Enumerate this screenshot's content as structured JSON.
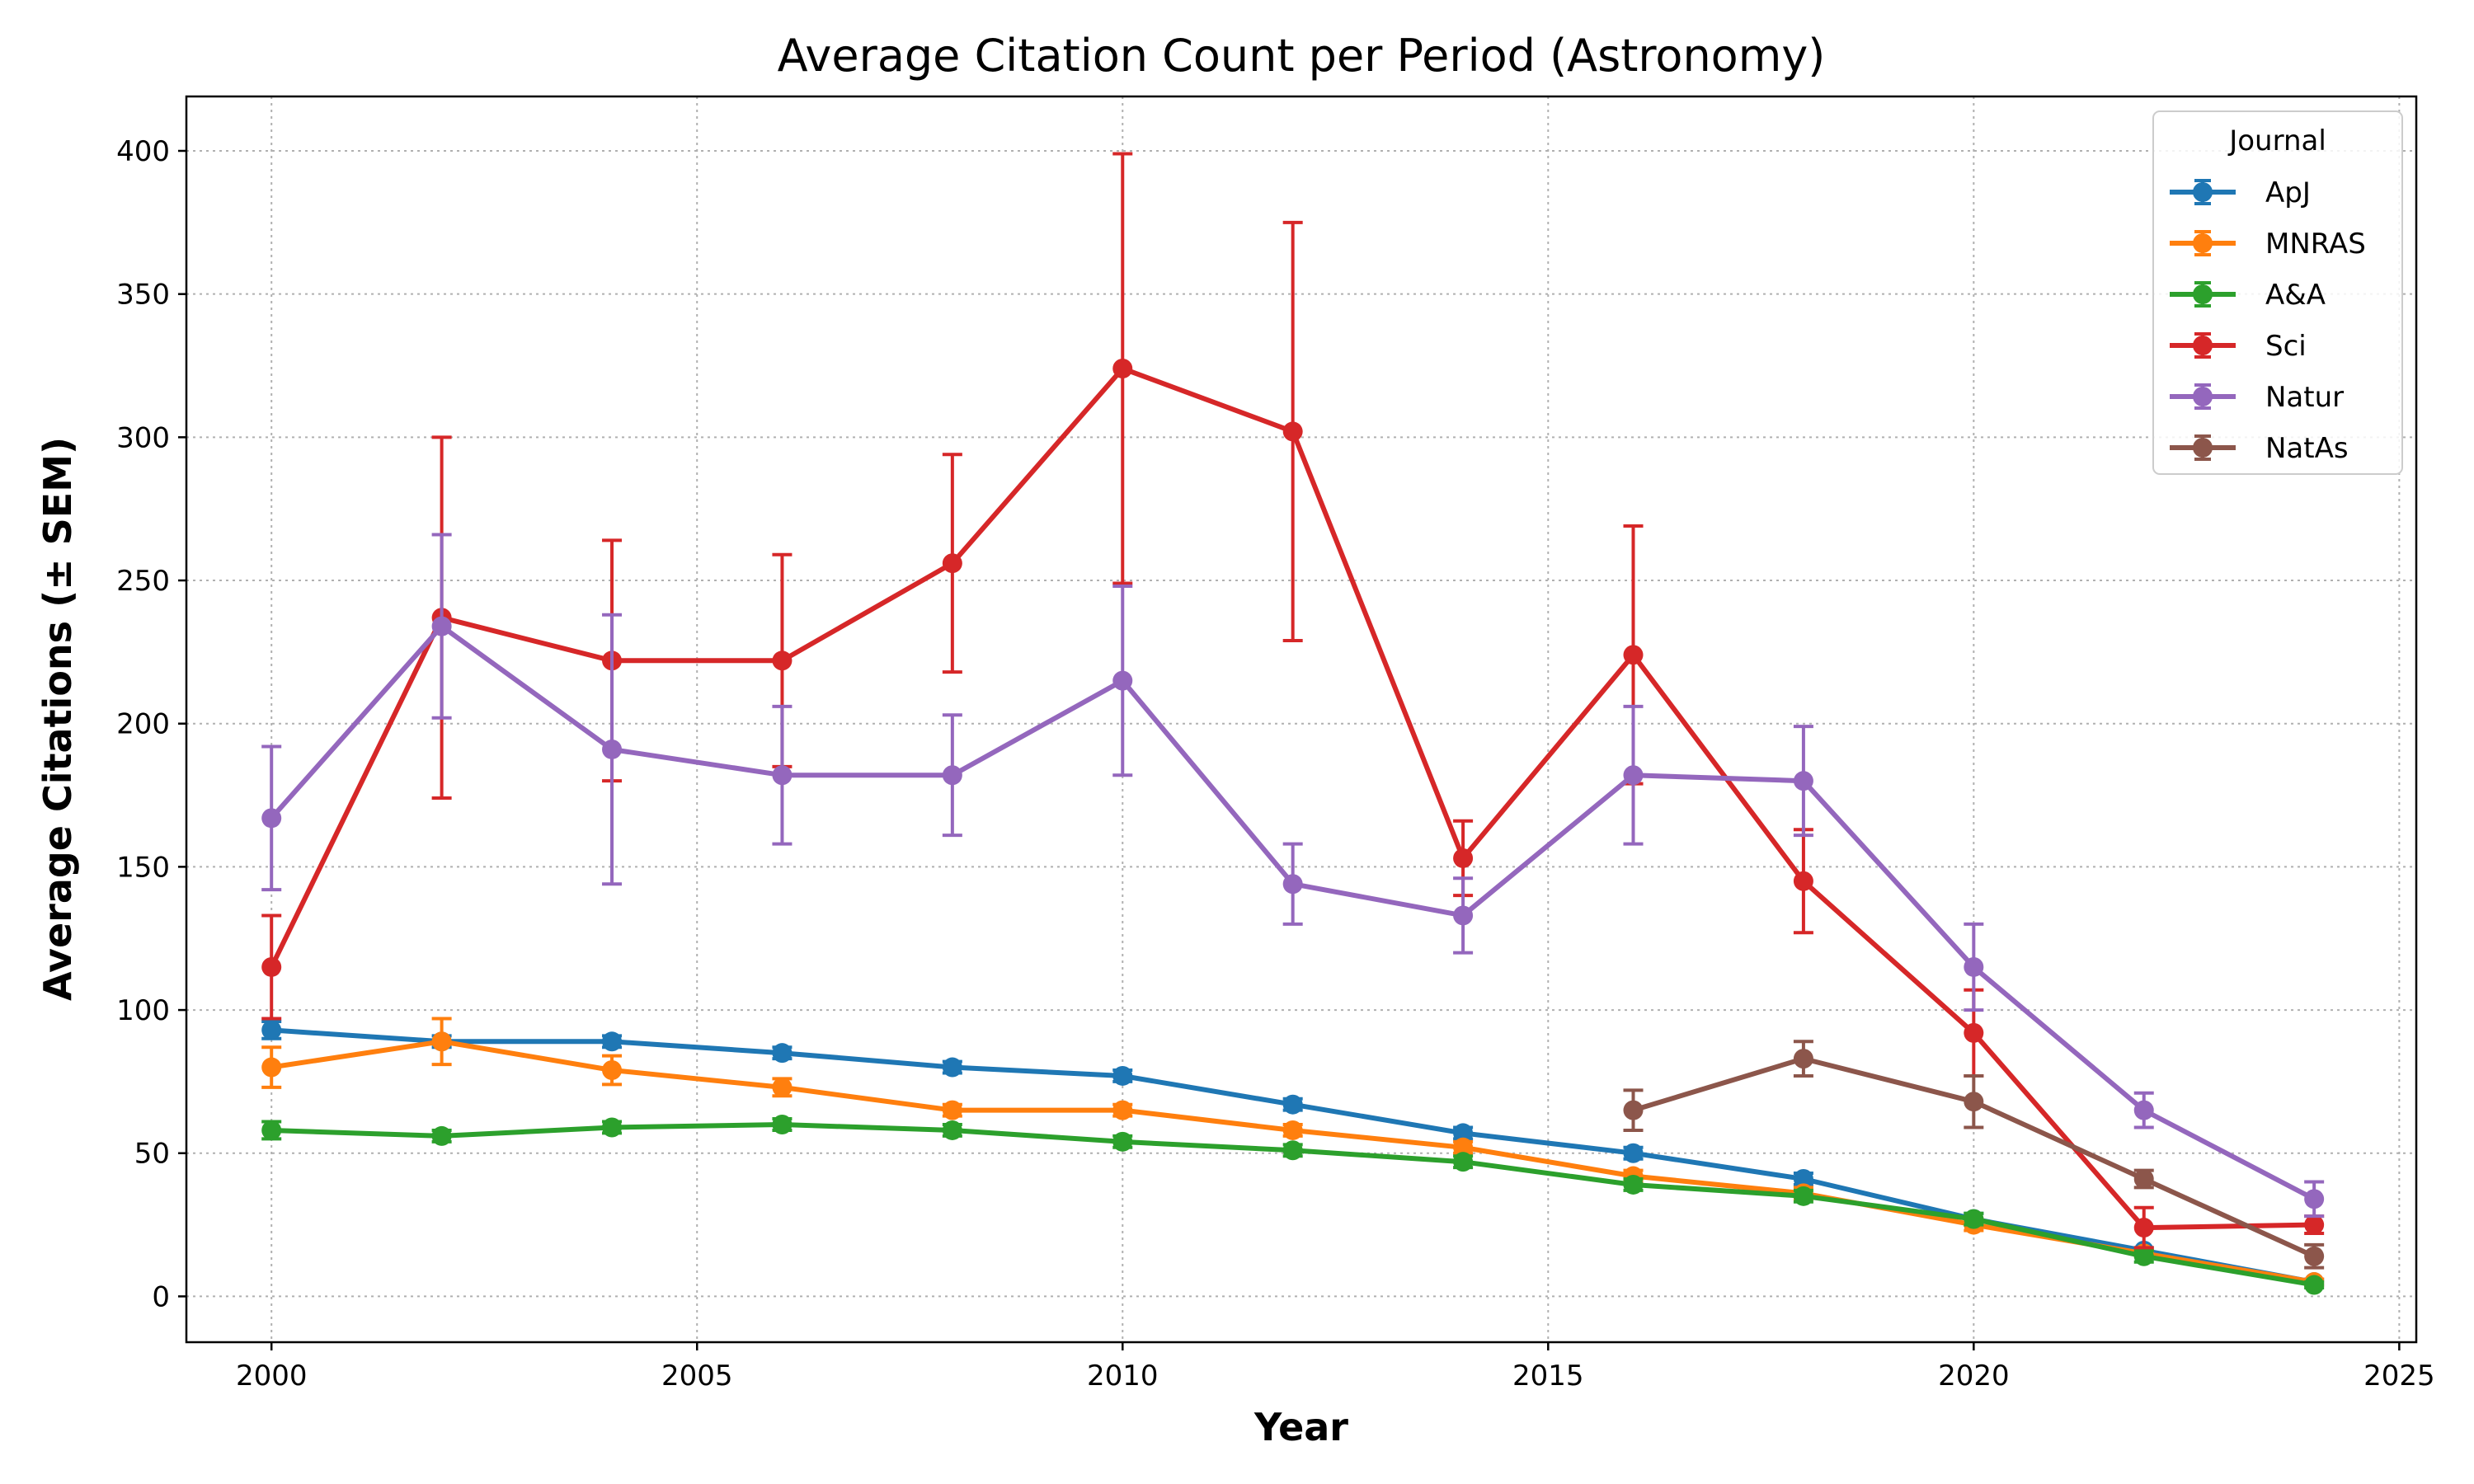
{
  "chart_data": {
    "type": "line",
    "title": "Average Citation Count per Period (Astronomy)",
    "xlabel": "Year",
    "ylabel": "Average Citations (± SEM)",
    "xlim": [
      1999,
      2025.2
    ],
    "ylim": [
      -16,
      419
    ],
    "xticks": [
      2000,
      2005,
      2010,
      2015,
      2020,
      2025
    ],
    "yticks": [
      0,
      50,
      100,
      150,
      200,
      250,
      300,
      350,
      400
    ],
    "grid": true,
    "legend_title": "Journal",
    "legend_position": "top-right",
    "series": [
      {
        "name": "ApJ",
        "color": "#1f77b4",
        "x": [
          2000,
          2002,
          2004,
          2006,
          2008,
          2010,
          2012,
          2014,
          2016,
          2018,
          2020,
          2022,
          2024
        ],
        "y": [
          93,
          89,
          89,
          85,
          80,
          77,
          67,
          57,
          50,
          41,
          27,
          16,
          5
        ],
        "err": [
          3,
          2,
          2,
          2,
          2,
          2,
          2,
          2,
          2,
          2,
          2,
          1,
          1
        ]
      },
      {
        "name": "MNRAS",
        "color": "#ff7f0e",
        "x": [
          2000,
          2002,
          2004,
          2006,
          2008,
          2010,
          2012,
          2014,
          2016,
          2018,
          2020,
          2022,
          2024
        ],
        "y": [
          80,
          89,
          79,
          73,
          65,
          65,
          58,
          52,
          42,
          36,
          25,
          15,
          5
        ],
        "err": [
          7,
          8,
          5,
          3,
          2,
          2,
          2,
          2,
          2,
          2,
          2,
          1,
          1
        ]
      },
      {
        "name": "A&A",
        "color": "#2ca02c",
        "x": [
          2000,
          2002,
          2004,
          2006,
          2008,
          2010,
          2012,
          2014,
          2016,
          2018,
          2020,
          2022,
          2024
        ],
        "y": [
          58,
          56,
          59,
          60,
          58,
          54,
          51,
          47,
          39,
          35,
          27,
          14,
          4
        ],
        "err": [
          3,
          2,
          2,
          2,
          2,
          2,
          2,
          2,
          2,
          2,
          2,
          2,
          1
        ]
      },
      {
        "name": "Sci",
        "color": "#d62728",
        "x": [
          2000,
          2002,
          2004,
          2006,
          2008,
          2010,
          2012,
          2014,
          2016,
          2018,
          2020,
          2022,
          2024
        ],
        "y": [
          115,
          237,
          222,
          222,
          256,
          324,
          302,
          153,
          224,
          145,
          92,
          24,
          25
        ],
        "err": [
          18,
          63,
          42,
          37,
          38,
          75,
          73,
          13,
          45,
          18,
          15,
          7,
          3
        ]
      },
      {
        "name": "Natur",
        "color": "#9467bd",
        "x": [
          2000,
          2002,
          2004,
          2006,
          2008,
          2010,
          2012,
          2014,
          2016,
          2018,
          2020,
          2022,
          2024
        ],
        "y": [
          167,
          234,
          191,
          182,
          182,
          215,
          144,
          133,
          182,
          180,
          115,
          65,
          34
        ],
        "err": [
          25,
          32,
          47,
          24,
          21,
          33,
          14,
          13,
          24,
          19,
          15,
          6,
          6
        ]
      },
      {
        "name": "NatAs",
        "color": "#8c564b",
        "x": [
          2016,
          2018,
          2020,
          2022,
          2024
        ],
        "y": [
          65,
          83,
          68,
          41,
          14
        ],
        "err": [
          7,
          6,
          9,
          3,
          4
        ]
      }
    ]
  }
}
